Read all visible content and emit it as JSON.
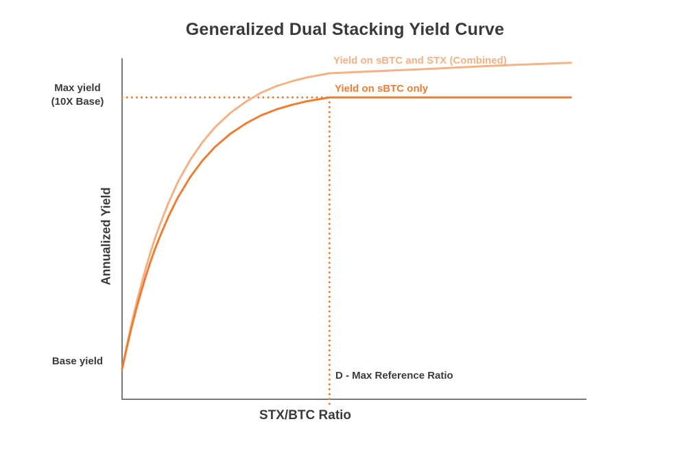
{
  "chart_data": {
    "type": "line",
    "title": "Generalized Dual Stacking Yield Curve",
    "xlabel": "STX/BTC Ratio",
    "ylabel": "Annualized Yield",
    "xlim": [
      0,
      1.5
    ],
    "ylim": [
      0,
      11.3
    ],
    "grid": false,
    "legend_position": "inline-labels",
    "axes": {
      "color": "#787878",
      "tick_labels": "none"
    },
    "x": [
      0,
      0.015,
      0.03,
      0.045,
      0.06,
      0.075,
      0.09,
      0.105,
      0.12,
      0.15,
      0.18,
      0.22,
      0.26,
      0.3,
      0.35,
      0.4,
      0.45,
      0.5,
      0.55,
      0.6,
      0.67,
      0.8,
      1.0,
      1.2,
      1.45
    ],
    "series": [
      {
        "name": "Yield on sBTC and STX (Combined)",
        "color": "#F4B183",
        "values": [
          1.0,
          1.76,
          2.47,
          3.13,
          3.73,
          4.29,
          4.81,
          5.29,
          5.73,
          6.51,
          7.19,
          7.93,
          8.52,
          9.01,
          9.49,
          9.86,
          10.16,
          10.38,
          10.54,
          10.67,
          10.8,
          10.86,
          10.95,
          11.05,
          11.15
        ]
      },
      {
        "name": "Yield on sBTC only",
        "color": "#ED7D31",
        "values": [
          1.0,
          1.7,
          2.35,
          2.96,
          3.51,
          4.02,
          4.5,
          4.94,
          5.34,
          6.06,
          6.68,
          7.36,
          7.91,
          8.36,
          8.8,
          9.14,
          9.41,
          9.61,
          9.76,
          9.88,
          10.0,
          10.0,
          10.0,
          10.0,
          10.0
        ]
      }
    ],
    "guides": {
      "max_yield_value": 10,
      "base_yield_value": 1,
      "reference_ratio_x": 0.67,
      "dotted_color": "#ED7D31"
    },
    "annotations": {
      "max_yield_line1": "Max yield",
      "max_yield_line2": "(10X Base)",
      "base_yield": "Base yield",
      "reference_ratio": "D - Max Reference Ratio"
    }
  }
}
